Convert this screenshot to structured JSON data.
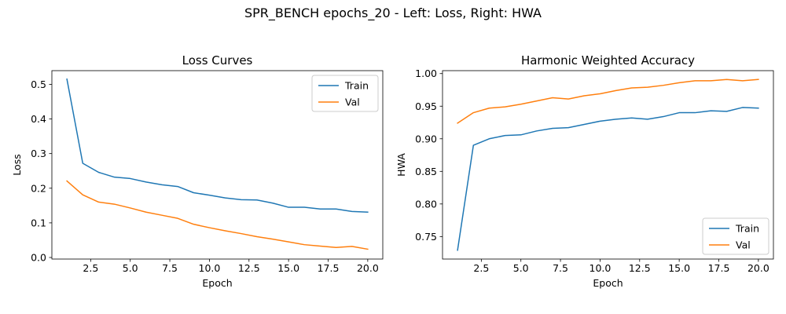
{
  "suptitle": "SPR_BENCH epochs_20 - Left: Loss, Right: HWA",
  "chart_data": [
    {
      "type": "line",
      "title": "Loss Curves",
      "xlabel": "Epoch",
      "ylabel": "Loss",
      "x": [
        1,
        2,
        3,
        4,
        5,
        6,
        7,
        8,
        9,
        10,
        11,
        12,
        13,
        14,
        15,
        16,
        17,
        18,
        19,
        20
      ],
      "xlim": [
        0.05,
        20.95
      ],
      "ylim": [
        -0.0045,
        0.5395
      ],
      "xticks": [
        2.5,
        5.0,
        7.5,
        10.0,
        12.5,
        15.0,
        17.5,
        20.0
      ],
      "xtick_labels": [
        "2.5",
        "5.0",
        "7.5",
        "10.0",
        "12.5",
        "15.0",
        "17.5",
        "20.0"
      ],
      "yticks": [
        0.0,
        0.1,
        0.2,
        0.3,
        0.4,
        0.5
      ],
      "ytick_labels": [
        "0.0",
        "0.1",
        "0.2",
        "0.3",
        "0.4",
        "0.5"
      ],
      "grid": false,
      "legend_position": "upper right",
      "series": [
        {
          "name": "Train",
          "color": "#1f77b4",
          "values": [
            0.515,
            0.272,
            0.246,
            0.232,
            0.228,
            0.218,
            0.21,
            0.205,
            0.187,
            0.18,
            0.172,
            0.167,
            0.166,
            0.157,
            0.145,
            0.145,
            0.14,
            0.14,
            0.133,
            0.131
          ]
        },
        {
          "name": "Val",
          "color": "#ff7f0e",
          "values": [
            0.221,
            0.181,
            0.16,
            0.154,
            0.143,
            0.131,
            0.122,
            0.113,
            0.096,
            0.086,
            0.077,
            0.069,
            0.06,
            0.053,
            0.045,
            0.037,
            0.033,
            0.029,
            0.032,
            0.024
          ]
        }
      ]
    },
    {
      "type": "line",
      "title": "Harmonic Weighted Accuracy",
      "xlabel": "Epoch",
      "ylabel": "HWA",
      "x": [
        1,
        2,
        3,
        4,
        5,
        6,
        7,
        8,
        9,
        10,
        11,
        12,
        13,
        14,
        15,
        16,
        17,
        18,
        19,
        20
      ],
      "xlim": [
        0.05,
        20.95
      ],
      "ylim": [
        0.7155,
        1.0045
      ],
      "xticks": [
        2.5,
        5.0,
        7.5,
        10.0,
        12.5,
        15.0,
        17.5,
        20.0
      ],
      "xtick_labels": [
        "2.5",
        "5.0",
        "7.5",
        "10.0",
        "12.5",
        "15.0",
        "17.5",
        "20.0"
      ],
      "yticks": [
        0.75,
        0.8,
        0.85,
        0.9,
        0.95,
        1.0
      ],
      "ytick_labels": [
        "0.75",
        "0.80",
        "0.85",
        "0.90",
        "0.95",
        "1.00"
      ],
      "grid": false,
      "legend_position": "lower right",
      "series": [
        {
          "name": "Train",
          "color": "#1f77b4",
          "values": [
            0.729,
            0.89,
            0.9,
            0.905,
            0.906,
            0.912,
            0.916,
            0.917,
            0.922,
            0.927,
            0.93,
            0.932,
            0.93,
            0.934,
            0.94,
            0.94,
            0.943,
            0.942,
            0.948,
            0.947
          ]
        },
        {
          "name": "Val",
          "color": "#ff7f0e",
          "values": [
            0.924,
            0.94,
            0.947,
            0.949,
            0.953,
            0.958,
            0.963,
            0.961,
            0.966,
            0.969,
            0.974,
            0.978,
            0.979,
            0.982,
            0.986,
            0.989,
            0.989,
            0.991,
            0.989,
            0.991
          ]
        }
      ]
    }
  ]
}
